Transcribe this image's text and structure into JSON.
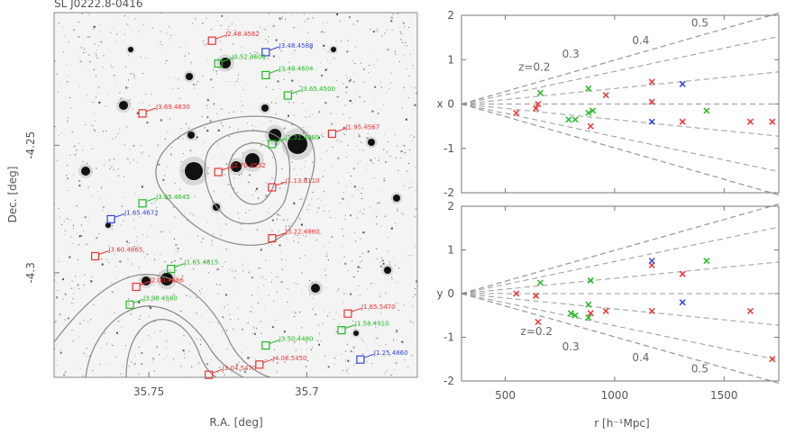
{
  "chart_data": [
    {
      "type": "scatter",
      "title": "SL J0222.8-0416",
      "xlabel": "R.A. [deg]",
      "ylabel": "Dec. [deg]",
      "x_ticks": [
        "35.75",
        "35.7"
      ],
      "y_ticks": [
        "-4.25",
        "-4.3"
      ],
      "xlim": [
        35.78,
        35.665
      ],
      "ylim": [
        -4.341,
        -4.198
      ],
      "grid": false,
      "colors": {
        "red": "#ee3333",
        "green": "#22bb22",
        "blue": "#3344dd",
        "contour": "#888888"
      },
      "galaxies": [
        {
          "ra": 35.73,
          "dec": -4.209,
          "label": "J2.48.4562",
          "color": "red"
        },
        {
          "ra": 35.713,
          "dec": -4.2135,
          "label": "J3.48.4588",
          "color": "blue"
        },
        {
          "ra": 35.728,
          "dec": -4.218,
          "label": "J3.52.4606",
          "color": "green"
        },
        {
          "ra": 35.713,
          "dec": -4.2225,
          "label": "J3.48.4604",
          "color": "green"
        },
        {
          "ra": 35.706,
          "dec": -4.2305,
          "label": "J3.65.4500",
          "color": "green"
        },
        {
          "ra": 35.752,
          "dec": -4.2375,
          "label": "J3.69.4830",
          "color": "red"
        },
        {
          "ra": 35.692,
          "dec": -4.2455,
          "label": "J1.95.4567",
          "color": "red"
        },
        {
          "ra": 35.711,
          "dec": -4.2495,
          "label": "J1.31.4880",
          "color": "green"
        },
        {
          "ra": 35.728,
          "dec": -4.2605,
          "label": "J2.70.4552",
          "color": "red"
        },
        {
          "ra": 35.711,
          "dec": -4.2665,
          "label": "J1.13.6110",
          "color": "red"
        },
        {
          "ra": 35.752,
          "dec": -4.2728,
          "label": "J3.65.4645",
          "color": "green"
        },
        {
          "ra": 35.762,
          "dec": -4.279,
          "label": "J1.65.4672",
          "color": "blue"
        },
        {
          "ra": 35.711,
          "dec": -4.2865,
          "label": "J3.22.4860",
          "color": "red"
        },
        {
          "ra": 35.767,
          "dec": -4.2935,
          "label": "J3.60.4865",
          "color": "red"
        },
        {
          "ra": 35.743,
          "dec": -4.2985,
          "label": "J1.65.4615",
          "color": "green"
        },
        {
          "ra": 35.754,
          "dec": -4.3055,
          "label": "J2.00.4686",
          "color": "red"
        },
        {
          "ra": 35.756,
          "dec": -4.3125,
          "label": "J3.98.4580",
          "color": "green"
        },
        {
          "ra": 35.687,
          "dec": -4.316,
          "label": "J1.65.5470",
          "color": "red"
        },
        {
          "ra": 35.689,
          "dec": -4.3225,
          "label": "J1.58.4910",
          "color": "green"
        },
        {
          "ra": 35.713,
          "dec": -4.3285,
          "label": "J3.50.4480",
          "color": "green"
        },
        {
          "ra": 35.683,
          "dec": -4.334,
          "label": "J1.25.4860",
          "color": "blue"
        },
        {
          "ra": 35.715,
          "dec": -4.336,
          "label": "J4.08.5450",
          "color": "red"
        },
        {
          "ra": 35.731,
          "dec": -4.34,
          "label": "J3.04.5470",
          "color": "red"
        }
      ]
    },
    {
      "type": "scatter",
      "ylabel": "x",
      "xlim": [
        300,
        1750
      ],
      "ylim": [
        -2,
        2
      ],
      "y_ticks": [
        "2",
        "1",
        "0",
        "-1",
        "-2"
      ],
      "grid": false,
      "redshift_lines": [
        "z=0.2",
        "0.3",
        "0.4",
        "0.5"
      ],
      "series": [
        {
          "color": "red",
          "x": [
            550,
            640,
            650,
            890,
            960,
            1170,
            1170,
            1310,
            1620,
            1720
          ],
          "y": [
            -0.2,
            -0.1,
            0.0,
            -0.5,
            0.2,
            0.5,
            0.05,
            -0.4,
            -0.4,
            -0.4
          ]
        },
        {
          "color": "green",
          "x": [
            660,
            790,
            820,
            880,
            880,
            900,
            1420
          ],
          "y": [
            0.25,
            -0.35,
            -0.35,
            0.35,
            -0.2,
            -0.15,
            -0.15
          ]
        },
        {
          "color": "blue",
          "x": [
            1170,
            1310
          ],
          "y": [
            -0.4,
            0.45
          ]
        }
      ]
    },
    {
      "type": "scatter",
      "xlabel": "r [h⁻¹Mpc]",
      "ylabel": "y",
      "xlim": [
        300,
        1750
      ],
      "ylim": [
        -2,
        2
      ],
      "x_ticks": [
        "500",
        "1000",
        "1500"
      ],
      "y_ticks": [
        "2",
        "1",
        "0",
        "-1",
        "-2"
      ],
      "grid": false,
      "redshift_lines": [
        "z=0.2",
        "0.3",
        "0.4",
        "0.5"
      ],
      "series": [
        {
          "color": "red",
          "x": [
            550,
            640,
            650,
            890,
            960,
            1170,
            1170,
            1310,
            1620,
            1720
          ],
          "y": [
            0.0,
            -0.05,
            -0.65,
            -0.45,
            -0.4,
            0.65,
            -0.4,
            0.45,
            -0.4,
            -1.5
          ]
        },
        {
          "color": "green",
          "x": [
            660,
            800,
            820,
            880,
            880,
            890,
            1420
          ],
          "y": [
            0.25,
            -0.45,
            -0.5,
            -0.55,
            -0.25,
            0.3,
            0.75
          ]
        },
        {
          "color": "blue",
          "x": [
            1170,
            1310
          ],
          "y": [
            0.75,
            -0.2
          ]
        }
      ]
    }
  ]
}
